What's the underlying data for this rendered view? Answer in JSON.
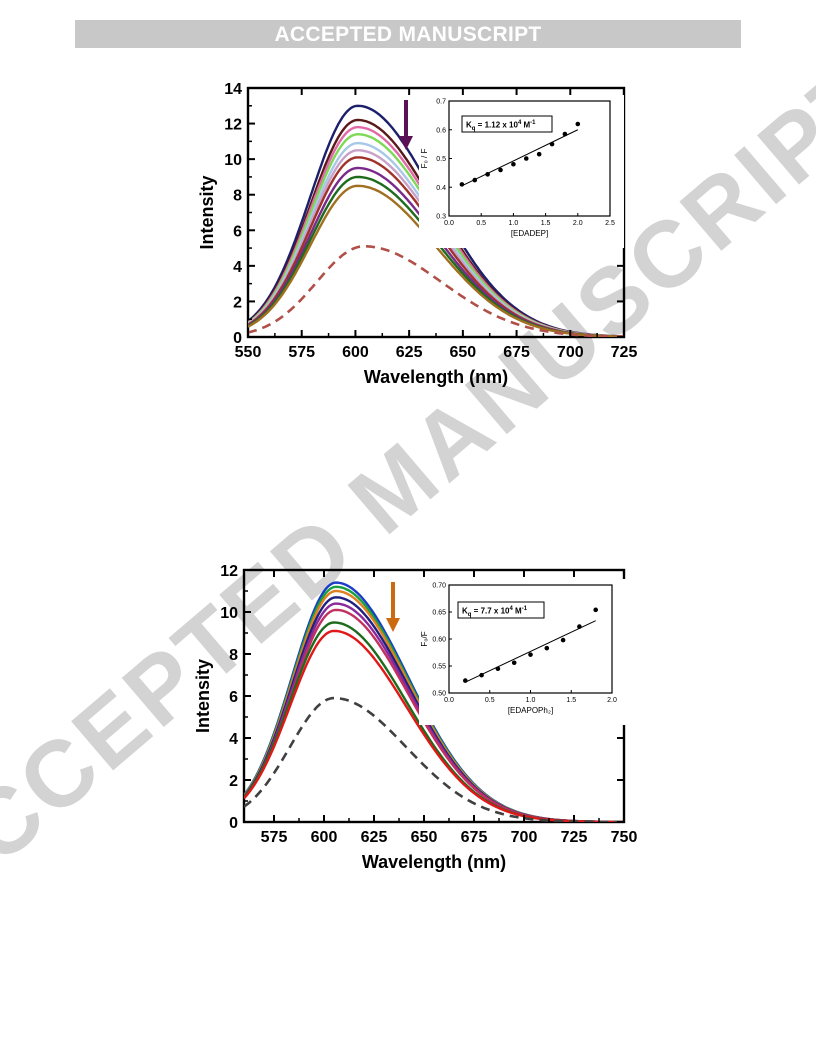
{
  "header": {
    "banner_text": "ACCEPTED MANUSCRIPT"
  },
  "watermark": {
    "text": "ACCEPTED MANUSCRIPT",
    "color": "#d3d3d3"
  },
  "chart_data": [
    {
      "type": "line",
      "xlabel": "Wavelength (nm)",
      "ylabel": "Intensity",
      "xlim": [
        550,
        725
      ],
      "ylim": [
        0,
        14
      ],
      "xticks": [
        550,
        575,
        600,
        625,
        650,
        675,
        700,
        725
      ],
      "yticks": [
        0,
        2,
        4,
        6,
        8,
        10,
        12,
        14
      ],
      "grid": false,
      "arrow_color": "#5c1055",
      "series": [
        {
          "peak": 13.0,
          "center": 601,
          "color": "#1c1f6b",
          "dashed": false
        },
        {
          "peak": 12.2,
          "center": 601,
          "color": "#5a1a1a",
          "dashed": false
        },
        {
          "peak": 11.8,
          "center": 601,
          "color": "#e06aa8",
          "dashed": false
        },
        {
          "peak": 11.4,
          "center": 601,
          "color": "#7ed957",
          "dashed": false
        },
        {
          "peak": 10.9,
          "center": 601,
          "color": "#a8c8e8",
          "dashed": false
        },
        {
          "peak": 10.5,
          "center": 601,
          "color": "#c9a0c8",
          "dashed": false
        },
        {
          "peak": 10.1,
          "center": 601,
          "color": "#a0322a",
          "dashed": false
        },
        {
          "peak": 9.5,
          "center": 601,
          "color": "#7a2a8a",
          "dashed": false
        },
        {
          "peak": 9.0,
          "center": 601,
          "color": "#1e6b1e",
          "dashed": false
        },
        {
          "peak": 8.5,
          "center": 601,
          "color": "#a07020",
          "dashed": false
        },
        {
          "peak": 5.1,
          "center": 604,
          "color": "#b05048",
          "dashed": true
        }
      ],
      "inset": {
        "type": "scatter",
        "xlabel": "[EDADEP]",
        "ylabel": "F₀ / F",
        "xlim": [
          0,
          2.5
        ],
        "ylim": [
          0.3,
          0.7
        ],
        "xticks": [
          "0.0",
          "0.5",
          "1.0",
          "1.5",
          "2.0",
          "2.5"
        ],
        "yticks": [
          "0.3",
          "0.4",
          "0.5",
          "0.6",
          "0.7"
        ],
        "legend": {
          "prefix": "K",
          "sub": "q",
          "mid": " = 1.12 x 10",
          "sup1": "4",
          "unit": " M",
          "sup2": "-1"
        },
        "x": [
          0.2,
          0.4,
          0.6,
          0.8,
          1.0,
          1.2,
          1.4,
          1.6,
          1.8,
          2.0
        ],
        "y": [
          0.41,
          0.425,
          0.445,
          0.46,
          0.48,
          0.5,
          0.515,
          0.55,
          0.585,
          0.62
        ],
        "fit": [
          [
            0.2,
            0.405
          ],
          [
            2.0,
            0.6
          ]
        ]
      }
    },
    {
      "type": "line",
      "xlabel": "Wavelength (nm)",
      "ylabel": "Intensity",
      "xlim": [
        560,
        750
      ],
      "ylim": [
        0,
        12
      ],
      "xticks": [
        575,
        600,
        625,
        650,
        675,
        700,
        725,
        750
      ],
      "yticks": [
        0,
        2,
        4,
        6,
        8,
        10,
        12
      ],
      "grid": false,
      "arrow_color": "#cc6a10",
      "series": [
        {
          "peak": 11.4,
          "center": 606,
          "color": "#1a3cc8",
          "dashed": false
        },
        {
          "peak": 11.2,
          "center": 606,
          "color": "#1aa040",
          "dashed": false
        },
        {
          "peak": 11.0,
          "center": 606,
          "color": "#e08020",
          "dashed": false
        },
        {
          "peak": 10.7,
          "center": 606,
          "color": "#202080",
          "dashed": false
        },
        {
          "peak": 10.4,
          "center": 606,
          "color": "#8a2a9a",
          "dashed": false
        },
        {
          "peak": 10.1,
          "center": 606,
          "color": "#c03060",
          "dashed": false
        },
        {
          "peak": 9.5,
          "center": 605,
          "color": "#1e6b1e",
          "dashed": false
        },
        {
          "peak": 9.1,
          "center": 605,
          "color": "#e01818",
          "dashed": false
        },
        {
          "peak": 5.9,
          "center": 605,
          "color": "#404040",
          "dashed": true
        }
      ],
      "inset": {
        "type": "scatter",
        "xlabel": "[EDAPOPh₂]",
        "ylabel": "F₀/F",
        "xlim": [
          0,
          2.0
        ],
        "ylim": [
          0.5,
          0.7
        ],
        "xticks": [
          "0.0",
          "0.5",
          "1.0",
          "1.5",
          "2.0"
        ],
        "yticks": [
          "0.50",
          "0.55",
          "0.60",
          "0.65",
          "0.70"
        ],
        "legend": {
          "prefix": "K",
          "sub": "q",
          "mid": " = 7.7 x 10",
          "sup1": "4",
          "unit": " M",
          "sup2": "-1"
        },
        "x": [
          0.2,
          0.4,
          0.6,
          0.8,
          1.0,
          1.2,
          1.4,
          1.6,
          1.8
        ],
        "y": [
          0.523,
          0.533,
          0.545,
          0.556,
          0.571,
          0.583,
          0.598,
          0.623,
          0.654
        ],
        "fit": [
          [
            0.2,
            0.52
          ],
          [
            1.8,
            0.634
          ]
        ]
      }
    }
  ]
}
